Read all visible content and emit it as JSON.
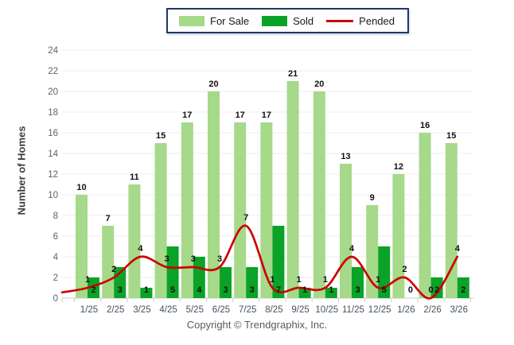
{
  "legend": {
    "items": [
      {
        "label": "For Sale",
        "swatch": "bar",
        "color": "#A6D98A"
      },
      {
        "label": "Sold",
        "swatch": "bar",
        "color": "#0AA327"
      },
      {
        "label": "Pended",
        "swatch": "line",
        "color": "#CC0000"
      }
    ],
    "border_color": "#1F3864"
  },
  "footer": {
    "copyright": "Copyright © Trendgraphix, Inc."
  },
  "chart_data": {
    "type": "bar",
    "subtype": "grouped-bars-with-smooth-line",
    "title": "",
    "xlabel": "",
    "ylabel": "Number of Homes",
    "categories": [
      "1/25",
      "2/25",
      "3/25",
      "4/25",
      "5/25",
      "6/25",
      "7/25",
      "8/25",
      "9/25",
      "10/25",
      "11/25",
      "12/25",
      "1/26",
      "2/26",
      "3/26"
    ],
    "series": [
      {
        "name": "For Sale",
        "type": "bar",
        "color": "#A6D98A",
        "values": [
          10,
          7,
          11,
          15,
          17,
          20,
          17,
          17,
          21,
          20,
          13,
          9,
          12,
          16,
          15
        ]
      },
      {
        "name": "Sold",
        "type": "bar",
        "color": "#0AA327",
        "values": [
          2,
          3,
          1,
          5,
          4,
          3,
          3,
          7,
          1,
          1,
          3,
          5,
          0,
          2,
          2
        ]
      },
      {
        "name": "Pended",
        "type": "line",
        "color": "#CC0000",
        "values": [
          1,
          2,
          4,
          3,
          3,
          3,
          7,
          1,
          1,
          1,
          4,
          1,
          2,
          0,
          4
        ]
      }
    ],
    "ylim": [
      0,
      24
    ],
    "yticks": [
      0,
      2,
      4,
      6,
      8,
      10,
      12,
      14,
      16,
      18,
      20,
      22,
      24
    ],
    "grid": true,
    "legend_position": "top-center",
    "value_labels": true,
    "colors": {
      "gridline": "#ECECEC",
      "axis": "#C8C8C8",
      "tick_label_y": "#5A6470",
      "tick_label_x": "#45525F",
      "value_label": "#111111"
    }
  }
}
